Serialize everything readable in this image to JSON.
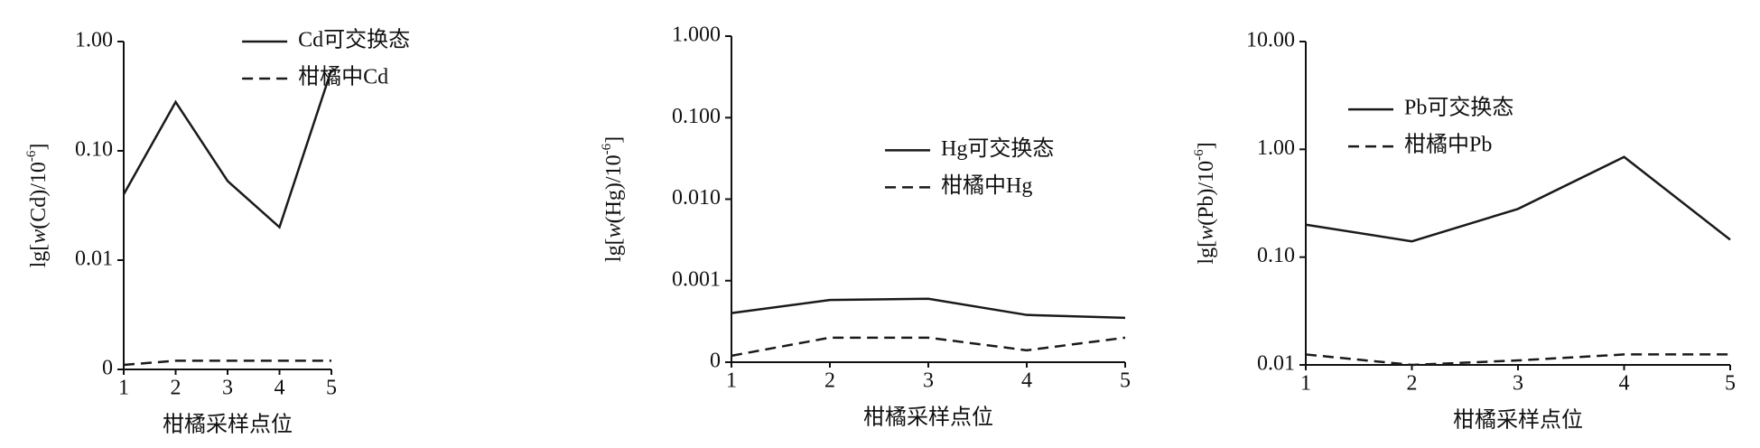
{
  "chart_data": [
    {
      "type": "line",
      "log_y": true,
      "x": [
        1,
        2,
        3,
        4,
        5
      ],
      "xlim": [
        1,
        5
      ],
      "xticks": [
        1,
        2,
        3,
        4,
        5
      ],
      "ylim": [
        0.001,
        1
      ],
      "yticks": [
        {
          "value": 0.001,
          "label": "0"
        },
        {
          "value": 0.01,
          "label": "0.01"
        },
        {
          "value": 0.1,
          "label": "0.10"
        },
        {
          "value": 1,
          "label": "1.00"
        }
      ],
      "xlabel": "柑橘采样点位",
      "ylabel": [
        "lg[",
        "w",
        "(Cd)/10",
        "-6",
        "]"
      ],
      "legend_position": "upper center",
      "series": [
        {
          "name": "Cd可交换态",
          "color": "#1a1a1a",
          "dash": "solid",
          "values": [
            0.04,
            0.28,
            0.053,
            0.02,
            0.55
          ]
        },
        {
          "name": "柑橘中Cd",
          "color": "#1a1a1a",
          "dash": "dashed",
          "values": [
            0.0011,
            0.0012,
            0.0012,
            0.0012,
            0.0012
          ]
        }
      ]
    },
    {
      "type": "line",
      "log_y": true,
      "x": [
        1,
        2,
        3,
        4,
        5
      ],
      "xlim": [
        1,
        5
      ],
      "xticks": [
        1,
        2,
        3,
        4,
        5
      ],
      "ylim": [
        0.0001,
        1
      ],
      "yticks": [
        {
          "value": 0.0001,
          "label": "0"
        },
        {
          "value": 0.001,
          "label": "0.001"
        },
        {
          "value": 0.01,
          "label": "0.010"
        },
        {
          "value": 0.1,
          "label": "0.100"
        },
        {
          "value": 1,
          "label": "1.000"
        }
      ],
      "xlabel": "柑橘采样点位",
      "ylabel": [
        "lg[",
        "w",
        "(Hg)/10",
        "-6",
        "]"
      ],
      "legend_position": "center right",
      "series": [
        {
          "name": "Hg可交换态",
          "color": "#1a1a1a",
          "dash": "solid",
          "values": [
            0.0004,
            0.00058,
            0.0006,
            0.00038,
            0.00035
          ]
        },
        {
          "name": "柑橘中Hg",
          "color": "#1a1a1a",
          "dash": "dashed",
          "values": [
            0.00012,
            0.0002,
            0.0002,
            0.00014,
            0.0002
          ]
        }
      ]
    },
    {
      "type": "line",
      "log_y": true,
      "x": [
        1,
        2,
        3,
        4,
        5
      ],
      "xlim": [
        1,
        5
      ],
      "xticks": [
        1,
        2,
        3,
        4,
        5
      ],
      "ylim": [
        0.01,
        10
      ],
      "yticks": [
        {
          "value": 0.01,
          "label": "0.01"
        },
        {
          "value": 0.1,
          "label": "0.10"
        },
        {
          "value": 1,
          "label": "1.00"
        },
        {
          "value": 10,
          "label": "10.00"
        }
      ],
      "xlabel": "柑橘采样点位",
      "ylabel": [
        "lg[",
        "w",
        "(Pb)/10",
        "-6",
        "]"
      ],
      "legend_position": "upper left",
      "series": [
        {
          "name": "Pb可交换态",
          "color": "#1a1a1a",
          "dash": "solid",
          "values": [
            0.2,
            0.14,
            0.28,
            0.85,
            0.145
          ]
        },
        {
          "name": "柑橘中Pb",
          "color": "#1a1a1a",
          "dash": "dashed",
          "values": [
            0.0125,
            0.01,
            0.011,
            0.0125,
            0.0125
          ]
        }
      ]
    }
  ]
}
